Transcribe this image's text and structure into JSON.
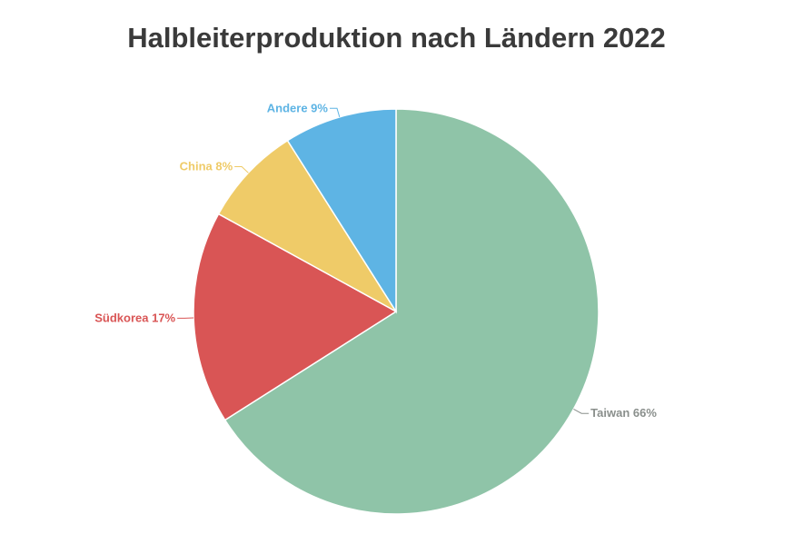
{
  "chart_data": {
    "type": "pie",
    "title": "Halbleiterproduktion nach Ländern 2022",
    "slices": [
      {
        "name": "Taiwan",
        "value": 66,
        "label": "Taiwan 66%",
        "color": "#8fc4a8",
        "label_color": "#8a8f8c"
      },
      {
        "name": "Südkorea",
        "value": 17,
        "label": "Südkorea 17%",
        "color": "#d95555",
        "label_color": "#d95555"
      },
      {
        "name": "China",
        "value": 8,
        "label": "China 8%",
        "color": "#efcb68",
        "label_color": "#efcb68"
      },
      {
        "name": "Andere",
        "value": 9,
        "label": "Andere 9%",
        "color": "#5eb4e4",
        "label_color": "#5eb4e4"
      }
    ],
    "start_angle": "top",
    "direction": "clockwise",
    "legend": "none"
  }
}
